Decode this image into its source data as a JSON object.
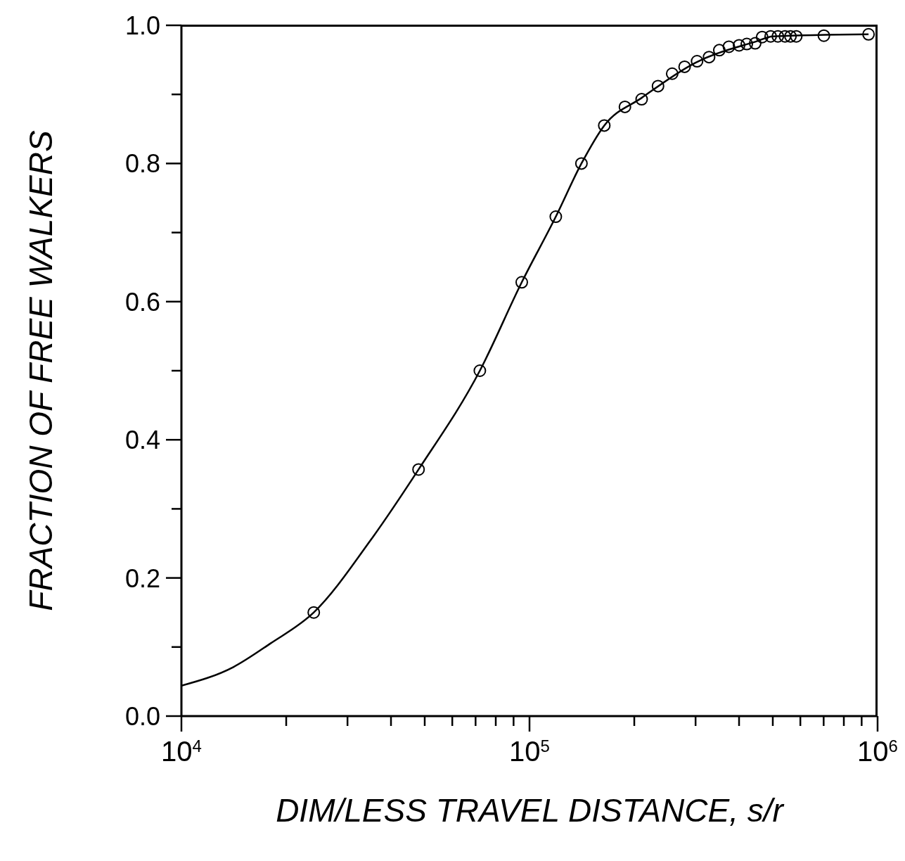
{
  "chart_data": {
    "type": "scatter",
    "xlabel": "DIM/LESS TRAVEL DISTANCE, s/r",
    "ylabel": "FRACTION OF FREE WALKERS",
    "log": "x",
    "xlim": [
      10000,
      1000000
    ],
    "xticks": [
      {
        "value": 10000,
        "label": "10$^{4}$"
      },
      {
        "value": 20000,
        "label": null
      },
      {
        "value": 30000,
        "label": null
      },
      {
        "value": 40000,
        "label": null
      },
      {
        "value": 50000,
        "label": null
      },
      {
        "value": 60000,
        "label": null
      },
      {
        "value": 70000,
        "label": null
      },
      {
        "value": 80000,
        "label": null
      },
      {
        "value": 90000,
        "label": null
      },
      {
        "value": 100000,
        "label": "10$^{5}$"
      },
      {
        "value": 200000,
        "label": null
      },
      {
        "value": 300000,
        "label": null
      },
      {
        "value": 400000,
        "label": null
      },
      {
        "value": 500000,
        "label": null
      },
      {
        "value": 600000,
        "label": null
      },
      {
        "value": 700000,
        "label": null
      },
      {
        "value": 800000,
        "label": null
      },
      {
        "value": 900000,
        "label": null
      },
      {
        "value": 1000000,
        "label": "10$^{6}$"
      }
    ],
    "ylim": [
      0,
      1
    ],
    "yticks": [
      {
        "value": 0,
        "label": "0.0"
      },
      {
        "value": 0.1,
        "label": null
      },
      {
        "value": 0.2,
        "label": "0.2"
      },
      {
        "value": 0.3,
        "label": null
      },
      {
        "value": 0.4,
        "label": "0.4"
      },
      {
        "value": 0.5,
        "label": null
      },
      {
        "value": 0.6,
        "label": "0.6"
      },
      {
        "value": 0.7,
        "label": null
      },
      {
        "value": 0.8,
        "label": "0.8"
      },
      {
        "value": 0.9,
        "label": null
      },
      {
        "value": 1,
        "label": "1.0"
      }
    ],
    "series": [
      {
        "color": "#000000",
        "marker": "circle",
        "x": [
          24000,
          48000,
          72000,
          95000,
          119000,
          141000,
          164000,
          188000,
          210000,
          234000,
          257000,
          279000,
          303000,
          328000,
          351000,
          374000,
          400000,
          421000,
          445000,
          466000,
          493000,
          517000,
          542000,
          562000,
          584000,
          701000,
          942000
        ],
        "values": [
          0.15,
          0.357,
          0.5,
          0.628,
          0.723,
          0.8,
          0.855,
          0.882,
          0.893,
          0.912,
          0.93,
          0.94,
          0.948,
          0.954,
          0.964,
          0.969,
          0.971,
          0.973,
          0.974,
          0.983,
          0.984,
          0.984,
          0.984,
          0.984,
          0.984,
          0.985,
          0.987
        ]
      },
      {
        "type": "line",
        "color": "#000000",
        "marker": "none",
        "line_style": "solid",
        "x": [
          10000,
          14100,
          18000,
          24000,
          35000,
          48000,
          72000,
          95000,
          119000,
          141000,
          164000,
          210000,
          300000,
          450000,
          500000,
          942000
        ],
        "values": [
          0.044,
          0.071,
          0.105,
          0.15,
          0.255,
          0.357,
          0.5,
          0.628,
          0.723,
          0.8,
          0.855,
          0.895,
          0.946,
          0.977,
          0.984,
          0.987
        ]
      }
    ]
  }
}
